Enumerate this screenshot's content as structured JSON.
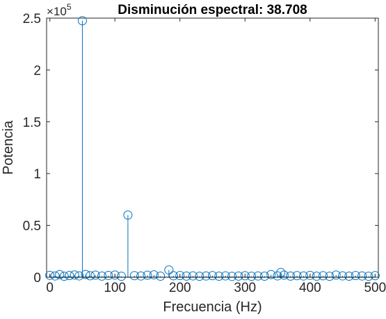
{
  "chart_data": {
    "type": "scatter",
    "style": "stem",
    "title": "Disminución espectral: 38.708",
    "xlabel": "Frecuencia (Hz)",
    "ylabel": "Potencia",
    "xlim": [
      -5,
      505
    ],
    "ylim": [
      0,
      250000
    ],
    "x_ticks": [
      0,
      100,
      200,
      300,
      400,
      500
    ],
    "x_tick_labels": [
      "0",
      "100",
      "200",
      "300",
      "400",
      "500"
    ],
    "y_ticks": [
      0,
      50000,
      100000,
      150000,
      200000,
      250000
    ],
    "y_tick_labels": [
      "0",
      "0.5",
      "1",
      "1.5",
      "2",
      "2.5"
    ],
    "y_exponent_label": "×10",
    "y_exponent_power": "5",
    "grid": false,
    "color": "#0072BD",
    "series": [
      {
        "x": [
          0,
          8,
          15,
          22,
          30,
          38,
          45,
          50,
          55,
          62,
          70,
          80,
          90,
          100,
          110,
          120,
          130,
          140,
          150,
          160,
          170,
          183,
          190,
          200,
          210,
          220,
          230,
          240,
          250,
          260,
          270,
          280,
          290,
          300,
          310,
          320,
          330,
          340,
          350,
          355,
          360,
          370,
          380,
          390,
          400,
          410,
          420,
          430,
          440,
          450,
          460,
          470,
          480,
          490,
          500
        ],
        "values": [
          1800,
          1200,
          2500,
          900,
          1600,
          2200,
          1300,
          247500,
          2600,
          1400,
          2000,
          1100,
          1700,
          2100,
          900,
          60000,
          1500,
          1200,
          1900,
          2300,
          1000,
          7000,
          1400,
          1600,
          1100,
          1300,
          900,
          1200,
          1500,
          1000,
          1300,
          800,
          1100,
          1400,
          900,
          1200,
          1000,
          2500,
          1300,
          4500,
          2000,
          1100,
          1500,
          1200,
          1800,
          1000,
          1400,
          900,
          2100,
          1300,
          1000,
          1600,
          1200,
          900,
          1500
        ]
      }
    ]
  }
}
